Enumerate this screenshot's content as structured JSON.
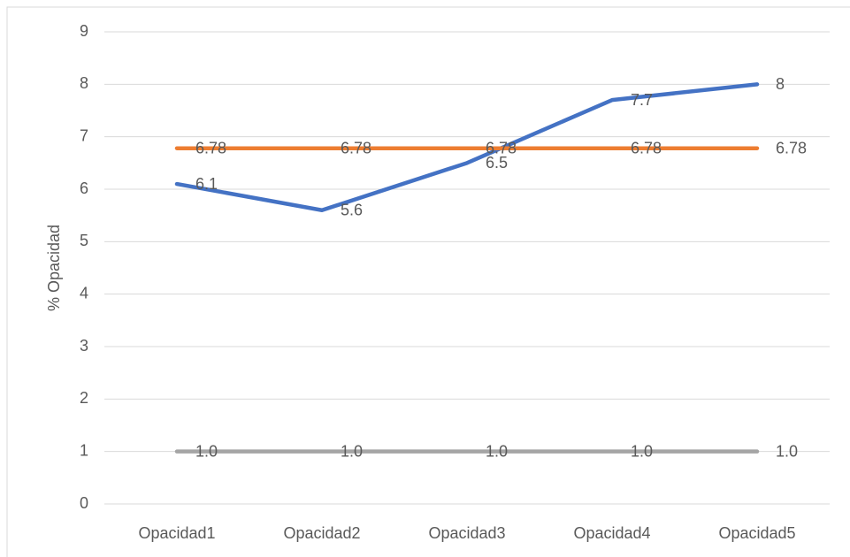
{
  "chart_data": {
    "type": "line",
    "y_label": "% Opacidad",
    "categories": [
      "Opacidad1",
      "Opacidad2",
      "Opacidad3",
      "Opacidad4",
      "Opacidad5"
    ],
    "series": [
      {
        "color": "#4472c4",
        "values": [
          6.1,
          5.6,
          6.5,
          7.7,
          8
        ]
      },
      {
        "color": "#ed7d31",
        "values": [
          6.78,
          6.78,
          6.78,
          6.78,
          6.78
        ]
      },
      {
        "color": "#a5a5a5",
        "values": [
          1,
          1,
          1,
          1,
          1
        ],
        "value_labels": [
          "1.0",
          "1.0",
          "1.0",
          "1.0",
          "1.0"
        ]
      }
    ],
    "ylim": [
      0,
      9
    ],
    "yticks": [
      0,
      1,
      2,
      3,
      4,
      5,
      6,
      7,
      8,
      9
    ],
    "grid": true
  }
}
